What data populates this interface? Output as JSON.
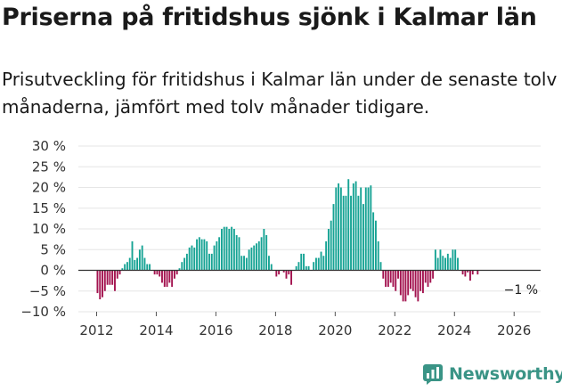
{
  "header": {
    "title": "Priserna på fritidshus sjönk i Kalmar län",
    "subtitle": "Prisutveckling för fritidshus i Kalmar län under de senaste tolv månaderna, jämfört med tolv månader tidigare."
  },
  "brand": {
    "name": "Newsworthy"
  },
  "colors": {
    "positive": "#16a394",
    "negative": "#a3134f",
    "zero_line": "#333333",
    "grid": "#e6e6e6",
    "brand": "#3a9486"
  },
  "chart_data": {
    "type": "bar",
    "title": "Priserna på fritidshus sjönk i Kalmar län",
    "xlabel": "",
    "ylabel": "",
    "unit": "%",
    "ylim": [
      -10,
      30
    ],
    "yticks": [
      -10,
      -5,
      0,
      5,
      10,
      15,
      20,
      25,
      30
    ],
    "ytick_labels": [
      "−10 %",
      "−5 %",
      "0 %",
      "5 %",
      "10 %",
      "15 %",
      "20 %",
      "25 %",
      "30 %"
    ],
    "xticks": [
      2012,
      2014,
      2016,
      2018,
      2020,
      2022,
      2024,
      2026
    ],
    "xtick_labels": [
      "2012",
      "2014",
      "2016",
      "2018",
      "2020",
      "2022",
      "2024",
      "2026"
    ],
    "start": "2012-01",
    "frequency": "monthly",
    "end_label": "−1 %",
    "values": [
      -5.5,
      -7,
      -6.5,
      -5,
      -3.5,
      -3.5,
      -3.5,
      -5,
      -2,
      -1,
      0.5,
      1.5,
      2,
      3,
      7,
      2.5,
      3,
      5,
      6,
      3,
      1.5,
      1.5,
      0,
      -1,
      -1,
      -1.5,
      -3,
      -4,
      -4,
      -3,
      -4,
      -2,
      -1,
      0.5,
      2,
      3,
      4,
      5.5,
      6,
      5.5,
      7.5,
      8,
      7.5,
      7.5,
      7,
      4,
      4,
      6,
      7,
      8,
      10,
      10.5,
      10.5,
      10,
      10.5,
      10,
      8.5,
      8,
      3.5,
      3.5,
      3,
      5,
      5.5,
      6,
      6.5,
      7,
      8,
      10,
      8.5,
      3.5,
      1.5,
      0,
      -1.5,
      -1,
      0,
      -0.5,
      -2,
      -1,
      -3.5,
      0,
      1,
      2,
      4,
      4,
      1,
      1,
      0,
      2,
      3,
      3,
      4.5,
      3.5,
      7,
      10,
      12,
      16,
      20,
      21,
      20,
      18,
      18,
      22,
      18,
      21,
      21.5,
      18,
      20,
      16,
      20,
      20,
      20.5,
      14,
      12,
      7,
      2,
      -2,
      -4,
      -4,
      -3,
      -4,
      -5,
      -2,
      -6,
      -7.5,
      -7.5,
      -6,
      -4.5,
      -5,
      -6.5,
      -7.5,
      -5,
      -5.5,
      -3,
      -4,
      -3,
      -2,
      5,
      3,
      5,
      3.5,
      3,
      4,
      3,
      5,
      5,
      3,
      0,
      -1,
      -1.5,
      -0.5,
      -2.5,
      -1,
      0,
      -1
    ]
  }
}
